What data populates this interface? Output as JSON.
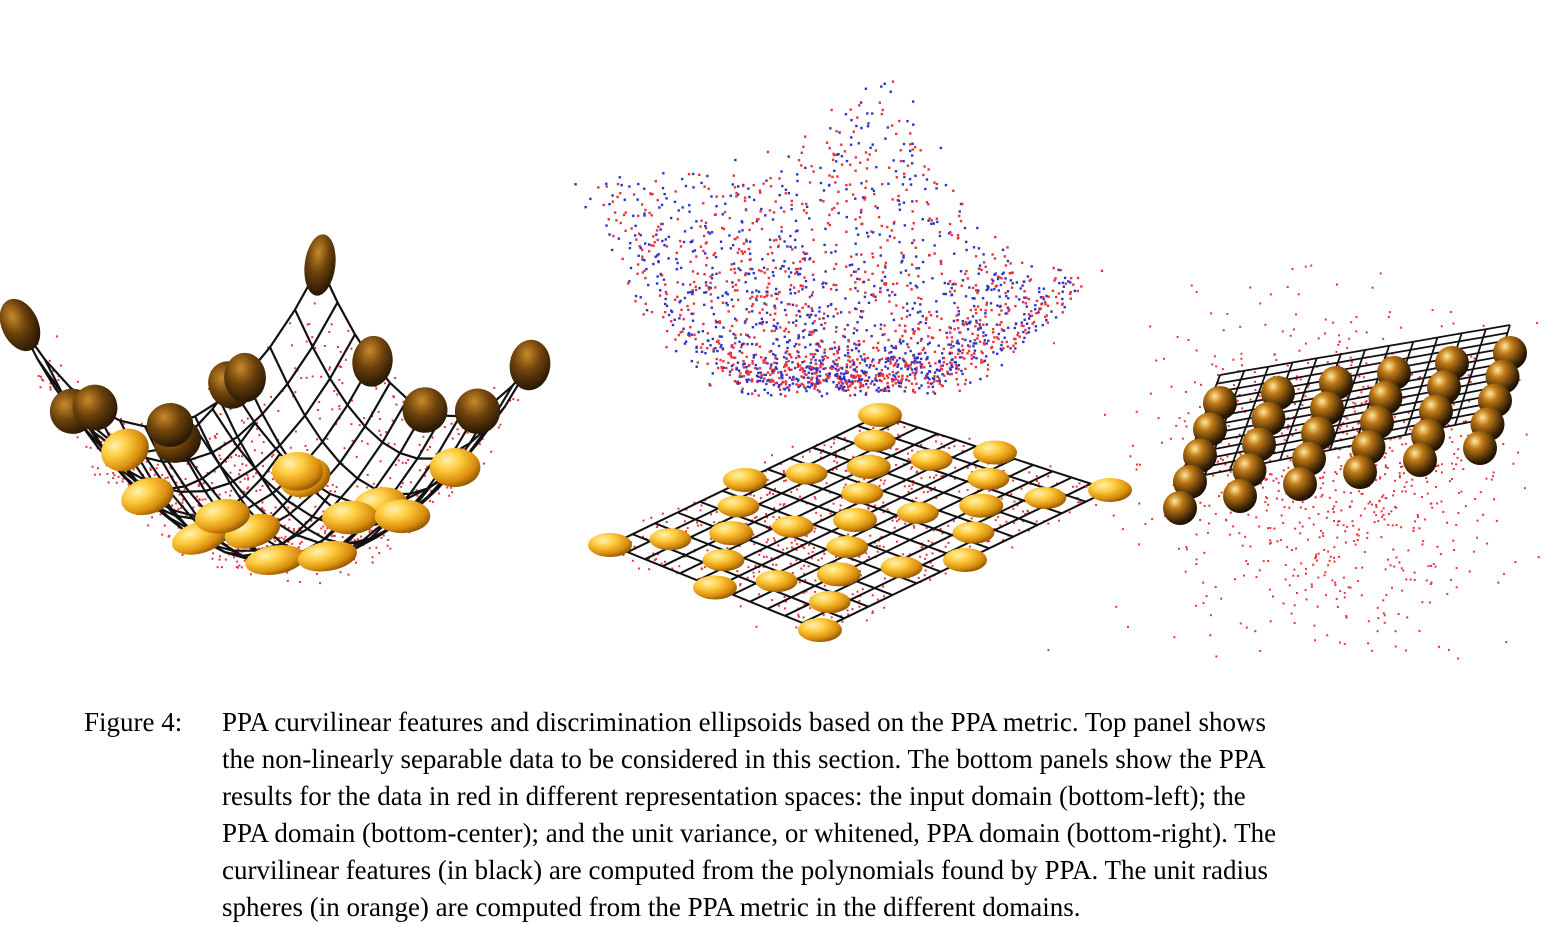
{
  "figure": {
    "label": "Figure 4:",
    "caption_lines": [
      "PPA curvilinear features and discrimination ellipsoids based on the PPA metric. Top panel shows",
      "the non-linearly separable data to be considered in this section. The bottom panels show the PPA",
      "results for the data in red in different representation spaces: the input domain (bottom-left); the",
      "PPA domain (bottom-center); and the unit variance, or whitened, PPA domain (bottom-right). The",
      "curvilinear features (in black) are computed from the polynomials found by PPA. The unit radius",
      "spheres (in orange) are computed from the PPA metric in the different domains."
    ]
  },
  "panels": {
    "top": {
      "name": "top-panel",
      "content": "scatter",
      "colors": [
        "#e8333c",
        "#2a35c8"
      ]
    },
    "bottom_left": {
      "name": "bottom-left-panel",
      "content": "curved-mesh-with-ellipsoids"
    },
    "bottom_center": {
      "name": "bottom-center-panel",
      "content": "flat-mesh-with-ellipsoids"
    },
    "bottom_right": {
      "name": "bottom-right-panel",
      "content": "flat-mesh-with-spheres"
    }
  },
  "colors": {
    "data_red": "#e8333c",
    "data_blue": "#2a35c8",
    "mesh": "#111111",
    "ellipsoid_light": "#ffd45a",
    "ellipsoid_mid": "#e49a10",
    "ellipsoid_dark": "#3a2205"
  }
}
